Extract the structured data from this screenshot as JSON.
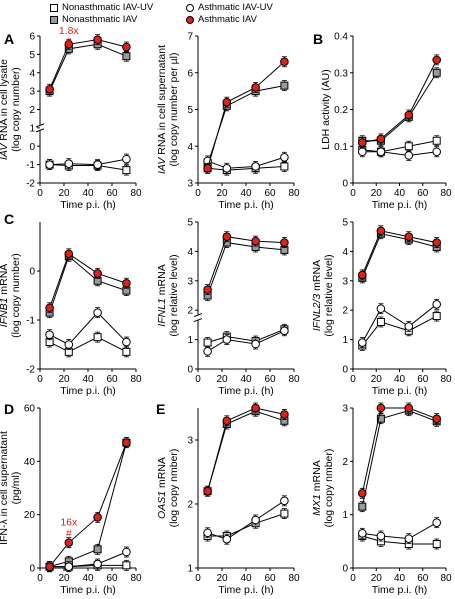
{
  "legend": [
    {
      "label": "Nonasthmatic IAV-UV",
      "marker": "square-open"
    },
    {
      "label": "Nonasthmatic IAV",
      "marker": "square-grey"
    },
    {
      "label": "Asthmatic IAV-UV",
      "marker": "circle-open"
    },
    {
      "label": "Asthmatic IAV",
      "marker": "circle-red"
    }
  ],
  "colors": {
    "red": "#e0201b",
    "grey": "#9a9a9a",
    "line": "#000000"
  },
  "chart_data": [
    {
      "type": "line",
      "panel": "A",
      "ylabel": "IAV RNA in cell lysate (log copy number)",
      "xlabel": "Time p.i. (h)",
      "x": [
        8,
        24,
        48,
        72
      ],
      "xlim": [
        0,
        80
      ],
      "xticks": [
        0,
        20,
        40,
        60,
        80
      ],
      "ylim": [
        -2,
        6
      ],
      "yticks": [
        -2,
        -1,
        0,
        1,
        2,
        3,
        4,
        5,
        6
      ],
      "axis_break": [
        0,
        2
      ],
      "annotations": [
        "1.8x",
        "#"
      ],
      "series": [
        {
          "name": "Nonasthmatic IAV-UV",
          "values": [
            -1.0,
            -1.05,
            -1.05,
            -1.3
          ]
        },
        {
          "name": "Nonasthmatic IAV",
          "values": [
            3.0,
            5.3,
            5.55,
            4.9
          ]
        },
        {
          "name": "Asthmatic IAV-UV",
          "values": [
            -1.0,
            -0.95,
            -1.0,
            -0.7
          ]
        },
        {
          "name": "Asthmatic IAV",
          "values": [
            3.1,
            5.55,
            5.8,
            5.4
          ]
        }
      ]
    },
    {
      "type": "line",
      "panel": "A2",
      "ylabel": "IAV RNA in cell supernatant (log copy number per µl)",
      "xlabel": "Time p.i. (h)",
      "x": [
        8,
        24,
        48,
        72
      ],
      "xlim": [
        0,
        80
      ],
      "xticks": [
        0,
        20,
        40,
        60,
        80
      ],
      "ylim": [
        3,
        7
      ],
      "yticks": [
        3,
        4,
        5,
        6,
        7
      ],
      "series": [
        {
          "name": "Nonasthmatic IAV-UV",
          "values": [
            3.4,
            3.35,
            3.4,
            3.45
          ]
        },
        {
          "name": "Nonasthmatic IAV",
          "values": [
            3.5,
            5.1,
            5.5,
            5.65
          ]
        },
        {
          "name": "Asthmatic IAV-UV",
          "values": [
            3.6,
            3.4,
            3.45,
            3.7
          ]
        },
        {
          "name": "Asthmatic IAV",
          "values": [
            3.4,
            5.2,
            5.6,
            6.3
          ]
        }
      ]
    },
    {
      "type": "line",
      "panel": "B",
      "ylabel": "LDH activity (AU)",
      "xlabel": "Time p.i. (h)",
      "x": [
        8,
        24,
        48,
        72
      ],
      "xlim": [
        0,
        80
      ],
      "xticks": [
        0,
        20,
        40,
        60,
        80
      ],
      "ylim": [
        0,
        0.4
      ],
      "yticks": [
        0,
        0.1,
        0.2,
        0.3,
        0.4
      ],
      "series": [
        {
          "name": "Nonasthmatic IAV-UV",
          "values": [
            0.09,
            0.085,
            0.1,
            0.115
          ]
        },
        {
          "name": "Nonasthmatic IAV",
          "values": [
            0.115,
            0.115,
            0.18,
            0.3
          ]
        },
        {
          "name": "Asthmatic IAV-UV",
          "values": [
            0.085,
            0.085,
            0.075,
            0.085
          ]
        },
        {
          "name": "Asthmatic IAV",
          "values": [
            0.11,
            0.12,
            0.185,
            0.335
          ]
        }
      ]
    },
    {
      "type": "line",
      "panel": "C",
      "ylabel": "IFNB1 mRNA (log copy number)",
      "xlabel": "Time p.i. (h)",
      "x": [
        8,
        24,
        48,
        72
      ],
      "xlim": [
        0,
        80
      ],
      "xticks": [
        0,
        20,
        40,
        60,
        80
      ],
      "ylim": [
        -2,
        1
      ],
      "yticks": [
        -2,
        -1,
        0
      ],
      "series": [
        {
          "name": "Nonasthmatic IAV-UV",
          "values": [
            -1.45,
            -1.65,
            -1.35,
            -1.65
          ]
        },
        {
          "name": "Nonasthmatic IAV",
          "values": [
            -0.85,
            0.3,
            -0.2,
            -0.4
          ]
        },
        {
          "name": "Asthmatic IAV-UV",
          "values": [
            -1.3,
            -1.5,
            -0.85,
            -1.45
          ]
        },
        {
          "name": "Asthmatic IAV",
          "values": [
            -0.75,
            0.35,
            -0.05,
            -0.25
          ]
        }
      ]
    },
    {
      "type": "line",
      "panel": "C2",
      "ylabel": "IFNL1 mRNA (log relative level)",
      "xlabel": "Time p.i. (h)",
      "x": [
        8,
        24,
        48,
        72
      ],
      "xlim": [
        0,
        80
      ],
      "xticks": [
        0,
        20,
        40,
        60,
        80
      ],
      "ylim": [
        0,
        5
      ],
      "yticks": [
        0,
        1,
        2,
        3,
        4,
        5
      ],
      "axis_break": [
        1.5,
        2
      ],
      "series": [
        {
          "name": "Nonasthmatic IAV-UV",
          "values": [
            0.9,
            1.1,
            0.95,
            1.35
          ]
        },
        {
          "name": "Nonasthmatic IAV",
          "values": [
            2.5,
            4.3,
            4.15,
            4.05
          ]
        },
        {
          "name": "Asthmatic IAV-UV",
          "values": [
            0.6,
            1.0,
            0.85,
            1.3
          ]
        },
        {
          "name": "Asthmatic IAV",
          "values": [
            2.7,
            4.5,
            4.35,
            4.3
          ]
        }
      ]
    },
    {
      "type": "line",
      "panel": "C3",
      "ylabel": "IFNL2/3 mRNA (log relative level)",
      "xlabel": "Time p.i. (h)",
      "x": [
        8,
        24,
        48,
        72
      ],
      "xlim": [
        0,
        80
      ],
      "xticks": [
        0,
        20,
        40,
        60,
        80
      ],
      "ylim": [
        0,
        5
      ],
      "yticks": [
        0,
        1,
        2,
        3,
        4,
        5
      ],
      "series": [
        {
          "name": "Nonasthmatic IAV-UV",
          "values": [
            0.8,
            1.6,
            1.3,
            1.8
          ]
        },
        {
          "name": "Nonasthmatic IAV",
          "values": [
            3.1,
            4.6,
            4.4,
            4.15
          ]
        },
        {
          "name": "Asthmatic IAV-UV",
          "values": [
            0.9,
            2.05,
            1.45,
            2.2
          ]
        },
        {
          "name": "Asthmatic IAV",
          "values": [
            3.2,
            4.7,
            4.5,
            4.3
          ]
        }
      ]
    },
    {
      "type": "line",
      "panel": "D",
      "ylabel": "IFN-λ in cell supernatant (pg/ml)",
      "xlabel": "Time p.i. (h)",
      "x": [
        8,
        24,
        48,
        72
      ],
      "xlim": [
        0,
        80
      ],
      "xticks": [
        0,
        20,
        40,
        60,
        80
      ],
      "ylim": [
        0,
        60
      ],
      "yticks": [
        0,
        20,
        40,
        60
      ],
      "annotations": [
        "16x",
        "#"
      ],
      "series": [
        {
          "name": "Nonasthmatic IAV-UV",
          "values": [
            0.5,
            0.5,
            1.0,
            1.0
          ]
        },
        {
          "name": "Nonasthmatic IAV",
          "values": [
            0.5,
            2.5,
            7.0,
            47.0
          ]
        },
        {
          "name": "Asthmatic IAV-UV",
          "values": [
            0.5,
            0.5,
            1.5,
            6.0
          ]
        },
        {
          "name": "Asthmatic IAV",
          "values": [
            0.5,
            9.5,
            19.0,
            47.0
          ]
        }
      ]
    },
    {
      "type": "line",
      "panel": "E",
      "ylabel": "OAS1 mRNA (log copy nmber)",
      "xlabel": "Time p.i. (h)",
      "x": [
        8,
        24,
        48,
        72
      ],
      "xlim": [
        0,
        80
      ],
      "xticks": [
        0,
        20,
        40,
        60,
        80
      ],
      "ylim": [
        1,
        3.5
      ],
      "yticks": [
        1,
        2,
        3
      ],
      "series": [
        {
          "name": "Nonasthmatic IAV-UV",
          "values": [
            1.5,
            1.5,
            1.7,
            1.85
          ]
        },
        {
          "name": "Nonasthmatic IAV",
          "values": [
            2.2,
            3.25,
            3.45,
            3.3
          ]
        },
        {
          "name": "Asthmatic IAV-UV",
          "values": [
            1.55,
            1.45,
            1.75,
            2.05
          ]
        },
        {
          "name": "Asthmatic IAV",
          "values": [
            2.2,
            3.3,
            3.5,
            3.4
          ]
        }
      ]
    },
    {
      "type": "line",
      "panel": "E2",
      "ylabel": "MX1 mRNA (log copy nmber)",
      "xlabel": "Time p.i. (h)",
      "x": [
        8,
        24,
        48,
        72
      ],
      "xlim": [
        0,
        80
      ],
      "xticks": [
        0,
        20,
        40,
        60,
        80
      ],
      "ylim": [
        0,
        3
      ],
      "yticks": [
        0,
        1,
        2,
        3
      ],
      "series": [
        {
          "name": "Nonasthmatic IAV-UV",
          "values": [
            0.6,
            0.5,
            0.45,
            0.45
          ]
        },
        {
          "name": "Nonasthmatic IAV",
          "values": [
            1.15,
            2.8,
            2.95,
            2.75
          ]
        },
        {
          "name": "Asthmatic IAV-UV",
          "values": [
            0.65,
            0.6,
            0.55,
            0.85
          ]
        },
        {
          "name": "Asthmatic IAV",
          "values": [
            1.4,
            3.0,
            3.0,
            2.8
          ]
        }
      ]
    }
  ],
  "panel_letters": [
    "A",
    "B",
    "C",
    "D",
    "E"
  ]
}
